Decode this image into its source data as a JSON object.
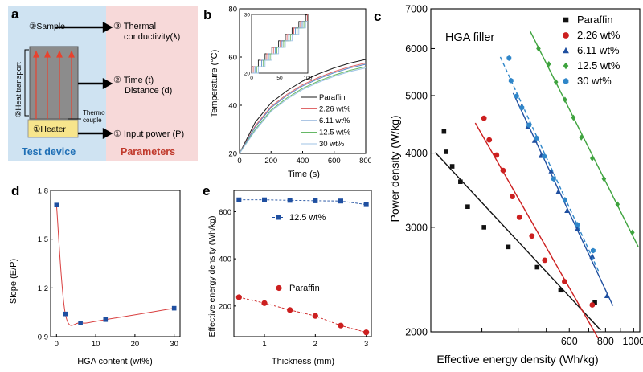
{
  "panel_labels": {
    "a": "a",
    "b": "b",
    "c": "c",
    "d": "d",
    "e": "e"
  },
  "panel_a": {
    "sample": "③Sample",
    "heat_transport": "②Heat transport",
    "thermo": "Thermo",
    "couple": "couple",
    "heater": "①Heater",
    "test_device": "Test device",
    "param_thermal_1": "③ Thermal",
    "param_thermal_2": "conductivity(λ)",
    "param_time_1": "② Time (t)",
    "param_time_2": "Distance (d)",
    "param_power": "① Input power (P)",
    "parameters": "Parameters",
    "colors": {
      "left_bg": "#cfe3f2",
      "right_bg": "#f7d9d9",
      "heater": "#f7e58c",
      "sample": "#8c8c8c",
      "arrows": "#e8422e",
      "test_device": "#1f6fb5",
      "parameters": "#c0392b"
    }
  },
  "chart_data": [
    {
      "id": "b",
      "type": "line",
      "title": "",
      "xlabel": "Time (s)",
      "ylabel": "Temperature (°C)",
      "xlim": [
        0,
        800
      ],
      "ylim": [
        20,
        80
      ],
      "xticks": [
        0,
        200,
        400,
        600,
        800
      ],
      "yticks": [
        20,
        40,
        60,
        80
      ],
      "series": [
        {
          "name": "Paraffin",
          "color": "#1a1a1a",
          "x": [
            0,
            100,
            200,
            300,
            400,
            500,
            600,
            700,
            800
          ],
          "y": [
            20,
            33,
            41,
            46,
            50,
            53,
            55.5,
            57.5,
            59
          ]
        },
        {
          "name": "2.26 wt%",
          "color": "#e0686a",
          "x": [
            0,
            100,
            200,
            300,
            400,
            500,
            600,
            700,
            800
          ],
          "y": [
            20,
            31.5,
            39.5,
            44.5,
            48.5,
            51.5,
            54,
            56,
            57.5
          ]
        },
        {
          "name": "6.11 wt%",
          "color": "#5b8dc9",
          "x": [
            0,
            100,
            200,
            300,
            400,
            500,
            600,
            700,
            800
          ],
          "y": [
            20,
            31,
            39,
            44,
            48,
            51,
            53.5,
            55.5,
            57
          ]
        },
        {
          "name": "12.5 wt%",
          "color": "#66b866",
          "x": [
            0,
            100,
            200,
            300,
            400,
            500,
            600,
            700,
            800
          ],
          "y": [
            20,
            30,
            38,
            43,
            47,
            50,
            52.5,
            54.5,
            56
          ]
        },
        {
          "name": "30 wt%",
          "color": "#9fc3e6",
          "x": [
            0,
            100,
            200,
            300,
            400,
            500,
            600,
            700,
            800
          ],
          "y": [
            20,
            29.5,
            37.5,
            42.5,
            46.5,
            49.5,
            52,
            54,
            55.5
          ]
        }
      ],
      "inset": {
        "xlim": [
          0,
          100
        ],
        "ylim": [
          20,
          30
        ],
        "xticks": [
          0,
          50,
          100
        ],
        "yticks": [
          20,
          30
        ],
        "step_offsets": [
          0,
          3,
          6,
          9,
          12
        ]
      }
    },
    {
      "id": "c",
      "type": "scatter",
      "title": "HGA filler",
      "xlabel": "Effective energy density (Wh/kg)",
      "ylabel": "Power density (W/kg)",
      "xscale": "log",
      "yscale": "log",
      "xlim": [
        200,
        1050
      ],
      "ylim": [
        2000,
        7000
      ],
      "xticks": [
        200,
        300,
        400,
        500,
        600,
        700,
        800,
        900,
        1000
      ],
      "xtick_labels": [
        "",
        "",
        "",
        "",
        "600",
        "",
        "800",
        "",
        "1000"
      ],
      "yticks": [
        2000,
        3000,
        4000,
        5000,
        6000,
        7000
      ],
      "series": [
        {
          "name": "Paraffin",
          "color": "#111111",
          "marker": "square",
          "fit": "solid",
          "x": [
            222,
            226,
            237,
            253,
            268,
            305,
            370,
            465,
            560,
            735
          ],
          "y": [
            4350,
            4020,
            3800,
            3580,
            3250,
            3000,
            2780,
            2570,
            2350,
            2240
          ]
        },
        {
          "name": "2.26 wt%",
          "color": "#cc1f1f",
          "marker": "circle",
          "fit": "solid",
          "x": [
            305,
            318,
            337,
            355,
            382,
            404,
            446,
            494,
            578,
            720
          ],
          "y": [
            4580,
            4210,
            3970,
            3740,
            3380,
            3120,
            2900,
            2640,
            2430,
            2220
          ]
        },
        {
          "name": "6.11 wt%",
          "color": "#1f4fa0",
          "marker": "triangle",
          "fit": "solid",
          "x": [
            412,
            432,
            456,
            480,
            520,
            550,
            590,
            640,
            720,
            810
          ],
          "y": [
            4800,
            4430,
            4200,
            3960,
            3730,
            3440,
            3200,
            2980,
            2680,
            2300
          ]
        },
        {
          "name": "12.5 wt%",
          "color": "#3ea33e",
          "marker": "diamond",
          "fit": "solid",
          "x": [
            470,
            510,
            540,
            580,
            620,
            660,
            720,
            790,
            880,
            990
          ],
          "y": [
            6000,
            5650,
            5270,
            4920,
            4590,
            4250,
            3920,
            3620,
            3280,
            2940
          ]
        },
        {
          "name": "30 wt%",
          "color": "#2f86c9",
          "marker": "hexagon",
          "fit": "dashed",
          "x": [
            372,
            378,
            395,
            412,
            436,
            463,
            492,
            530,
            580,
            640,
            725
          ],
          "y": [
            5780,
            5300,
            4990,
            4770,
            4460,
            4240,
            3950,
            3620,
            3330,
            3030,
            2740
          ]
        }
      ]
    },
    {
      "id": "d",
      "type": "scatter",
      "title": "",
      "xlabel": "HGA content (wt%)",
      "ylabel": "Slope (E/P)",
      "xlim": [
        -1.5,
        31.5
      ],
      "ylim": [
        0.9,
        1.8
      ],
      "xticks": [
        0,
        10,
        20,
        30
      ],
      "yticks": [
        0.9,
        1.2,
        1.5,
        1.8
      ],
      "ytick_labels": [
        "0.9",
        "1.2",
        "1.5",
        "1.8"
      ],
      "series": [
        {
          "name": "Slope",
          "color": "#1f4fa0",
          "line_color": "#d94040",
          "x": [
            0,
            2.26,
            6.11,
            12.5,
            30
          ],
          "y": [
            1.71,
            1.04,
            0.985,
            1.005,
            1.075
          ]
        }
      ]
    },
    {
      "id": "e",
      "type": "line",
      "title": "",
      "xlabel": "Thickness (mm)",
      "ylabel": "Effective energy density (Wh/kg)",
      "xlim": [
        0.4,
        3.1
      ],
      "ylim": [
        70,
        690
      ],
      "xticks": [
        1,
        2,
        3
      ],
      "yticks": [
        200,
        400,
        600
      ],
      "series": [
        {
          "name": "12.5 wt%",
          "color": "#1f4fa0",
          "marker": "square",
          "x": [
            0.5,
            1,
            1.5,
            2,
            2.5,
            3
          ],
          "y": [
            650,
            650,
            648,
            646,
            645,
            630
          ]
        },
        {
          "name": "Paraffin",
          "color": "#cc1f1f",
          "marker": "circle",
          "x": [
            0.5,
            1,
            1.5,
            2,
            2.5,
            3
          ],
          "y": [
            237,
            212,
            183,
            158,
            117,
            88
          ]
        }
      ]
    }
  ]
}
